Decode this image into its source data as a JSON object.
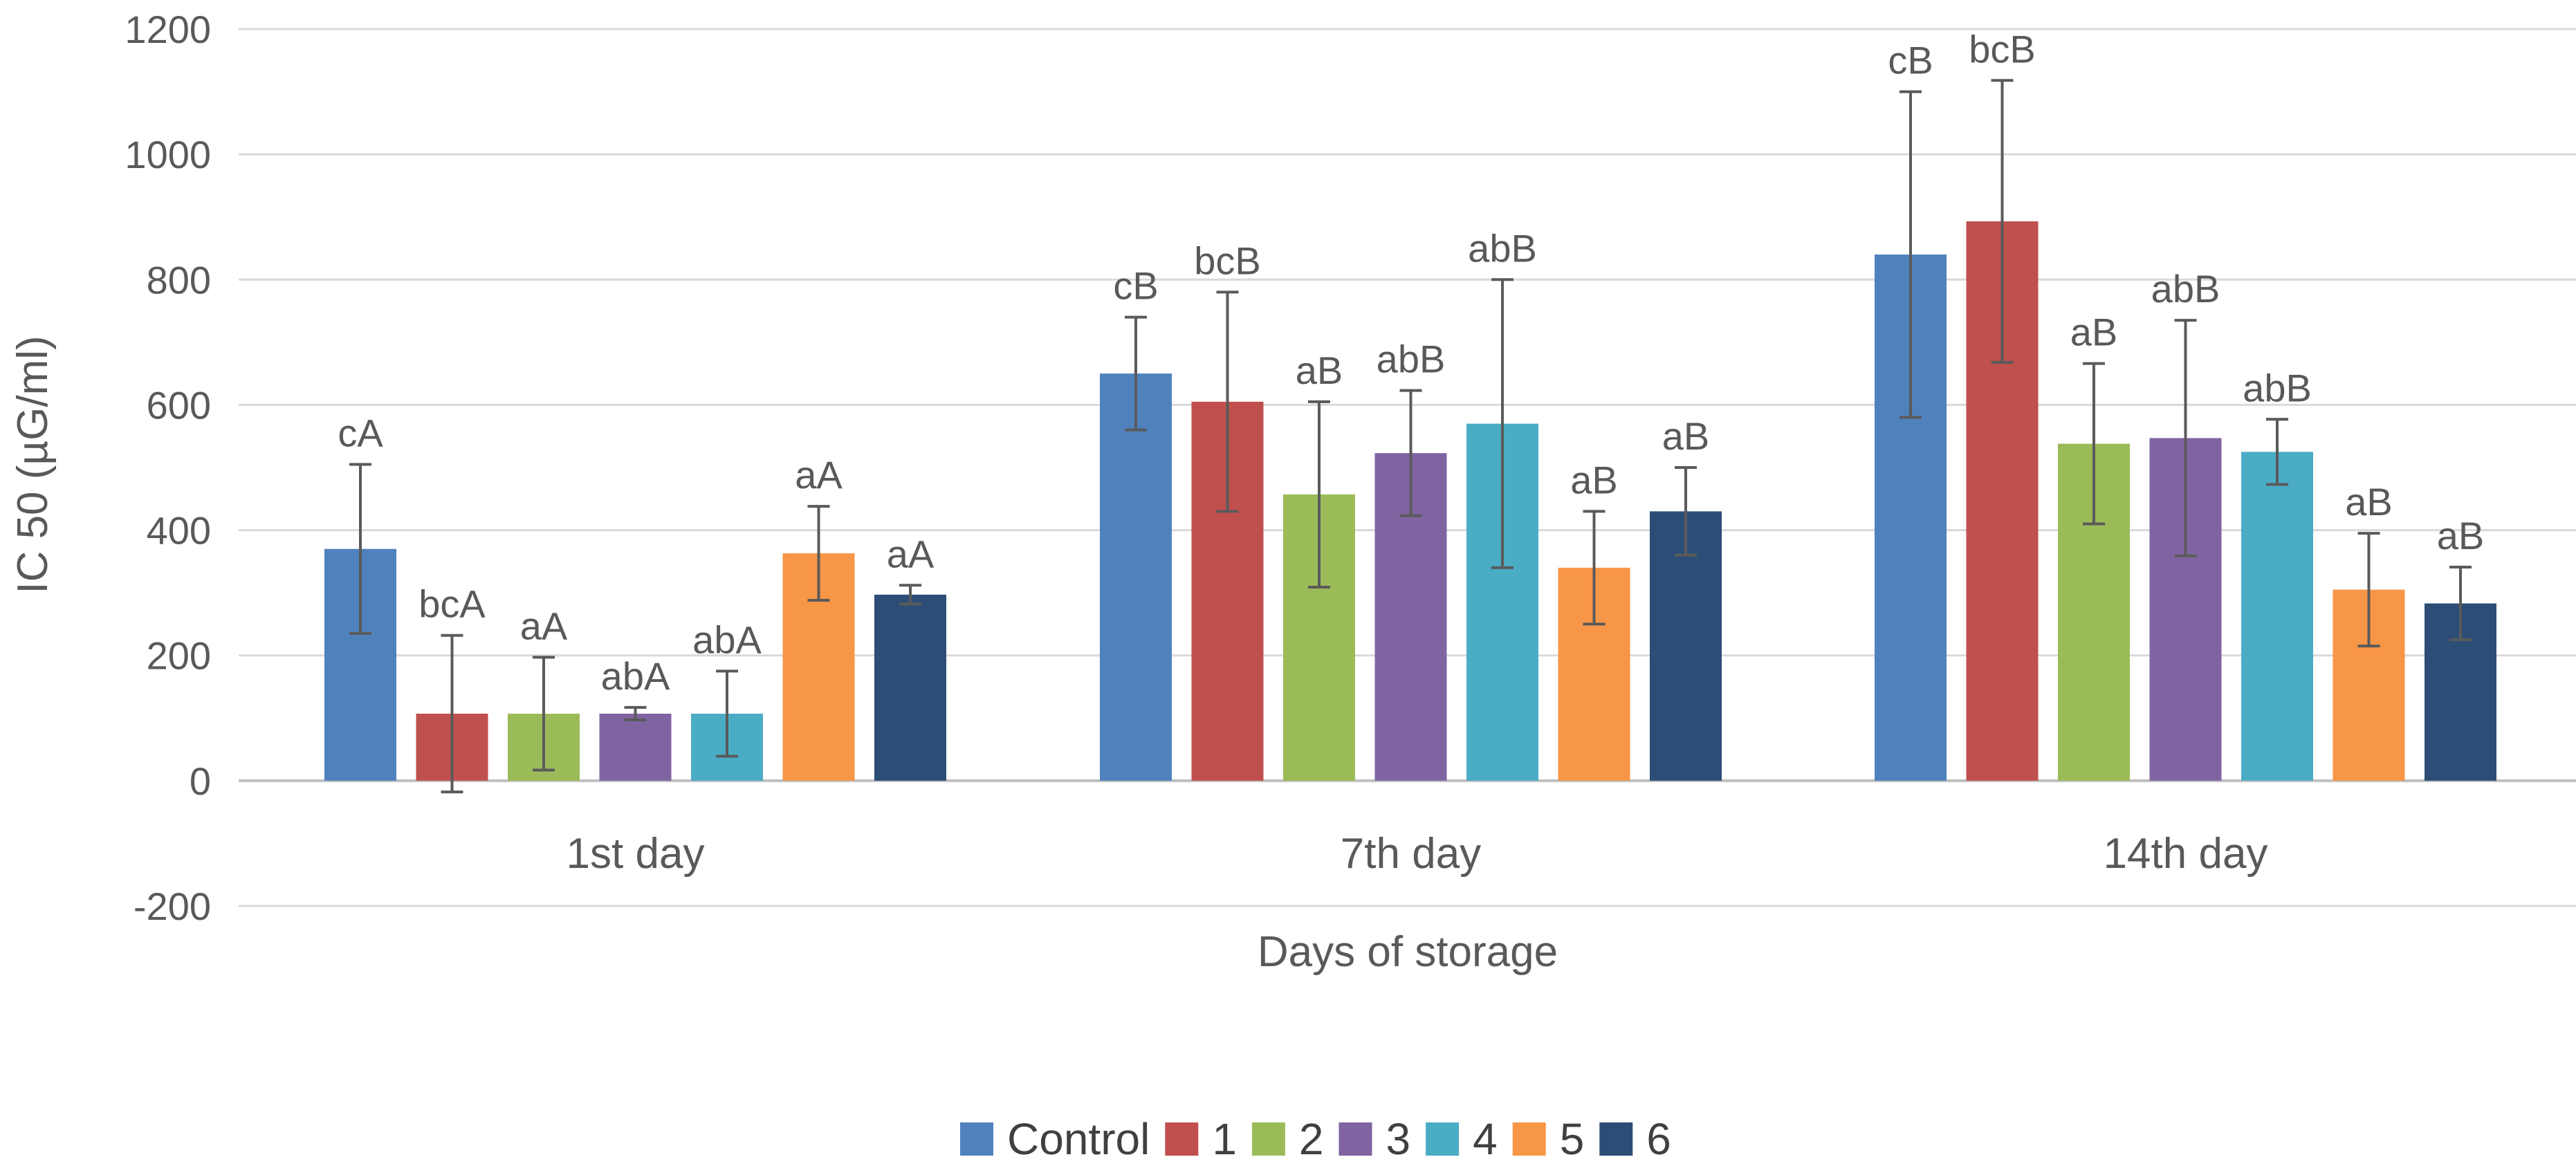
{
  "chart_data": {
    "type": "bar",
    "title": "",
    "xlabel": "Days of storage",
    "ylabel": "IC 50 (µG/ml)",
    "ylim": [
      -200,
      1200
    ],
    "yticks": [
      1200,
      1000,
      800,
      600,
      400,
      200,
      0,
      -200
    ],
    "grid": true,
    "legend_position": "bottom",
    "categories": [
      "1st day",
      "7th day",
      "14th day"
    ],
    "series": [
      {
        "name": "Control",
        "color": "#4f81bd",
        "values": [
          370,
          650,
          840
        ],
        "errors": [
          135,
          90,
          260
        ],
        "labels": [
          "cA",
          "cB",
          "cB"
        ]
      },
      {
        "name": "1",
        "color": "#c0504d",
        "values": [
          107,
          605,
          893
        ],
        "errors": [
          125,
          175,
          225
        ],
        "labels": [
          "bcA",
          "bcB",
          "bcB"
        ]
      },
      {
        "name": "2",
        "color": "#9bbb59",
        "values": [
          107,
          457,
          538
        ],
        "errors": [
          90,
          148,
          128
        ],
        "labels": [
          "aA",
          "aB",
          "aB"
        ]
      },
      {
        "name": "3",
        "color": "#8064a2",
        "values": [
          107,
          523,
          547
        ],
        "errors": [
          10,
          100,
          188
        ],
        "labels": [
          "abA",
          "abB",
          "abB"
        ]
      },
      {
        "name": "4",
        "color": "#4bacc6",
        "values": [
          107,
          570,
          525
        ],
        "errors": [
          68,
          230,
          52
        ],
        "labels": [
          "abA",
          "abB",
          "abB"
        ]
      },
      {
        "name": "5",
        "color": "#f79646",
        "values": [
          363,
          340,
          305
        ],
        "errors": [
          75,
          90,
          90
        ],
        "labels": [
          "aA",
          "aB",
          "aB"
        ]
      },
      {
        "name": "6",
        "color": "#2c4d75",
        "values": [
          297,
          430,
          283
        ],
        "errors": [
          15,
          70,
          58
        ],
        "labels": [
          "aA",
          "aB",
          "aB"
        ]
      }
    ]
  }
}
